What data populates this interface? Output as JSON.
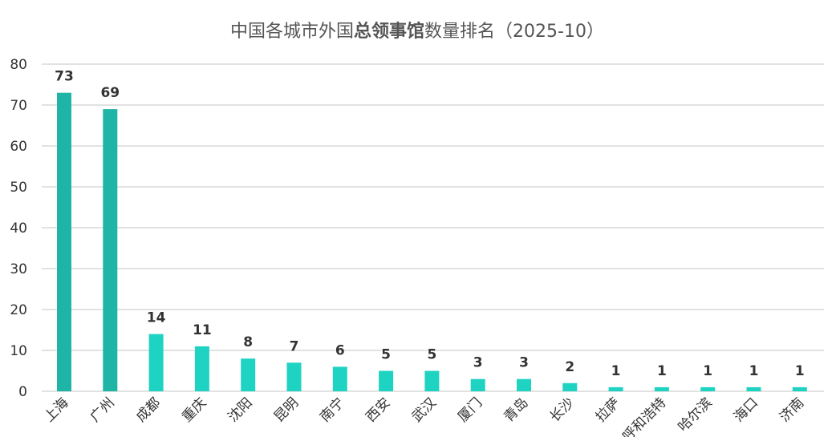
{
  "chart_data": {
    "type": "bar",
    "title_parts": [
      {
        "text": "中国各城市外国",
        "bold": false
      },
      {
        "text": "总领事馆",
        "bold": true
      },
      {
        "text": "数量排名（2025-10）",
        "bold": false
      }
    ],
    "xlabel": "",
    "ylabel": "",
    "ylim": [
      0,
      80
    ],
    "yticks": [
      "0",
      "10",
      "20",
      "30",
      "40",
      "50",
      "60",
      "70",
      "80"
    ],
    "grid": true,
    "legend": "none",
    "categories": [
      "上海",
      "广州",
      "成都",
      "重庆",
      "沈阳",
      "昆明",
      "南宁",
      "西安",
      "武汉",
      "厦门",
      "青岛",
      "长沙",
      "拉萨",
      "呼和浩特",
      "哈尔滨",
      "海口",
      "济南"
    ],
    "values": [
      73,
      69,
      14,
      11,
      8,
      7,
      6,
      5,
      5,
      3,
      3,
      2,
      1,
      1,
      1,
      1,
      1
    ],
    "colors": {
      "dark_bar": "#1fb5a6",
      "light_bar": "#1fd3c3",
      "title": "#555555",
      "axis_text": "#333333",
      "value_label": "#333333",
      "gridline": "#d9d9d9"
    }
  }
}
